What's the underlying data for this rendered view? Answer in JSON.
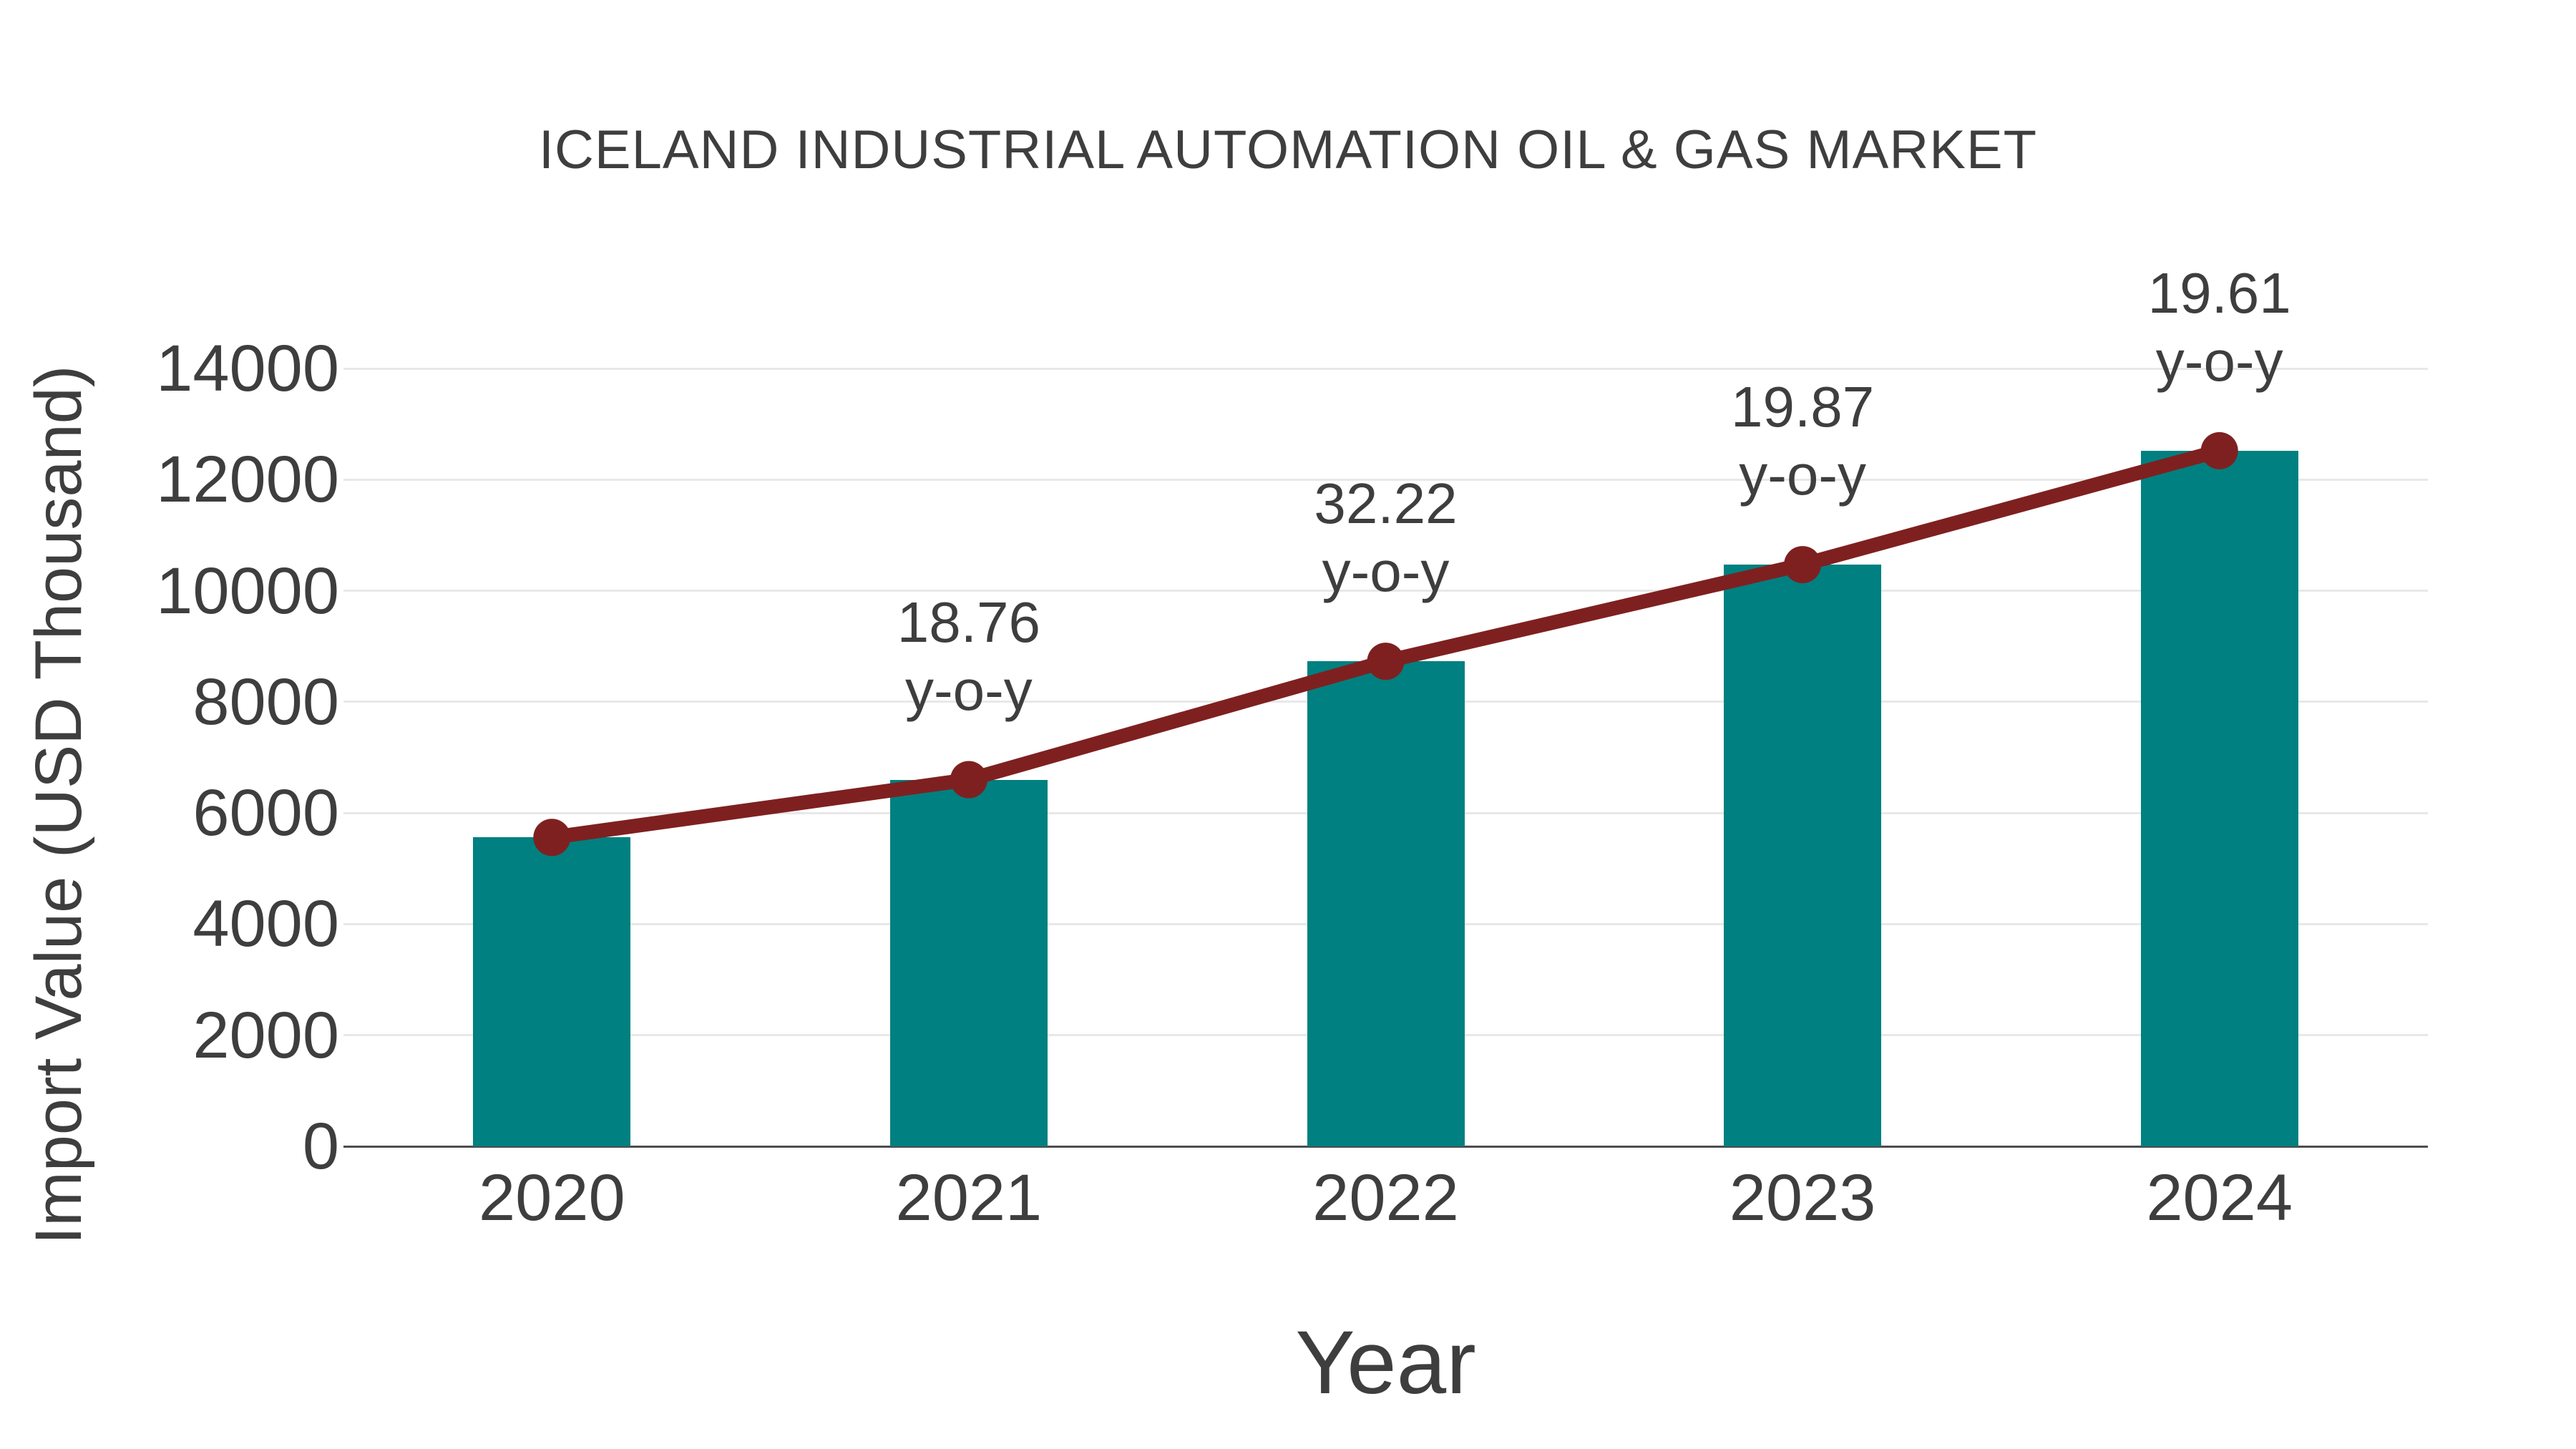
{
  "chart_data": {
    "type": "bar",
    "title": "ICELAND INDUSTRIAL AUTOMATION OIL & GAS MARKET",
    "xlabel": "Year",
    "ylabel": "Import Value (USD Thousand)",
    "categories": [
      "2020",
      "2021",
      "2022",
      "2023",
      "2024"
    ],
    "series": [
      {
        "name": "Import Value bars",
        "type": "bar",
        "color": "#008080",
        "values": [
          5560,
          6600,
          8730,
          10470,
          12520
        ]
      },
      {
        "name": "Import Value trend line",
        "type": "line",
        "color": "#7F2020",
        "values": [
          5560,
          6600,
          8730,
          10470,
          12520
        ]
      }
    ],
    "yoy_annotations": [
      {
        "category": "2021",
        "value": "18.76",
        "suffix": "y-o-y"
      },
      {
        "category": "2022",
        "value": "32.22",
        "suffix": "y-o-y"
      },
      {
        "category": "2023",
        "value": "19.87",
        "suffix": "y-o-y"
      },
      {
        "category": "2024",
        "value": "19.61",
        "suffix": "y-o-y"
      }
    ],
    "ylim": [
      0,
      14000
    ],
    "yticks": [
      0,
      2000,
      4000,
      6000,
      8000,
      10000,
      12000,
      14000
    ],
    "grid": true,
    "legend": "none"
  },
  "colors": {
    "bar": "#008080",
    "line": "#7F2020",
    "marker": "#7F2020",
    "text": "#3E3E3E",
    "grid": "#E8E8E8",
    "axis": "#4D4D4D",
    "background": "#FFFFFF"
  }
}
